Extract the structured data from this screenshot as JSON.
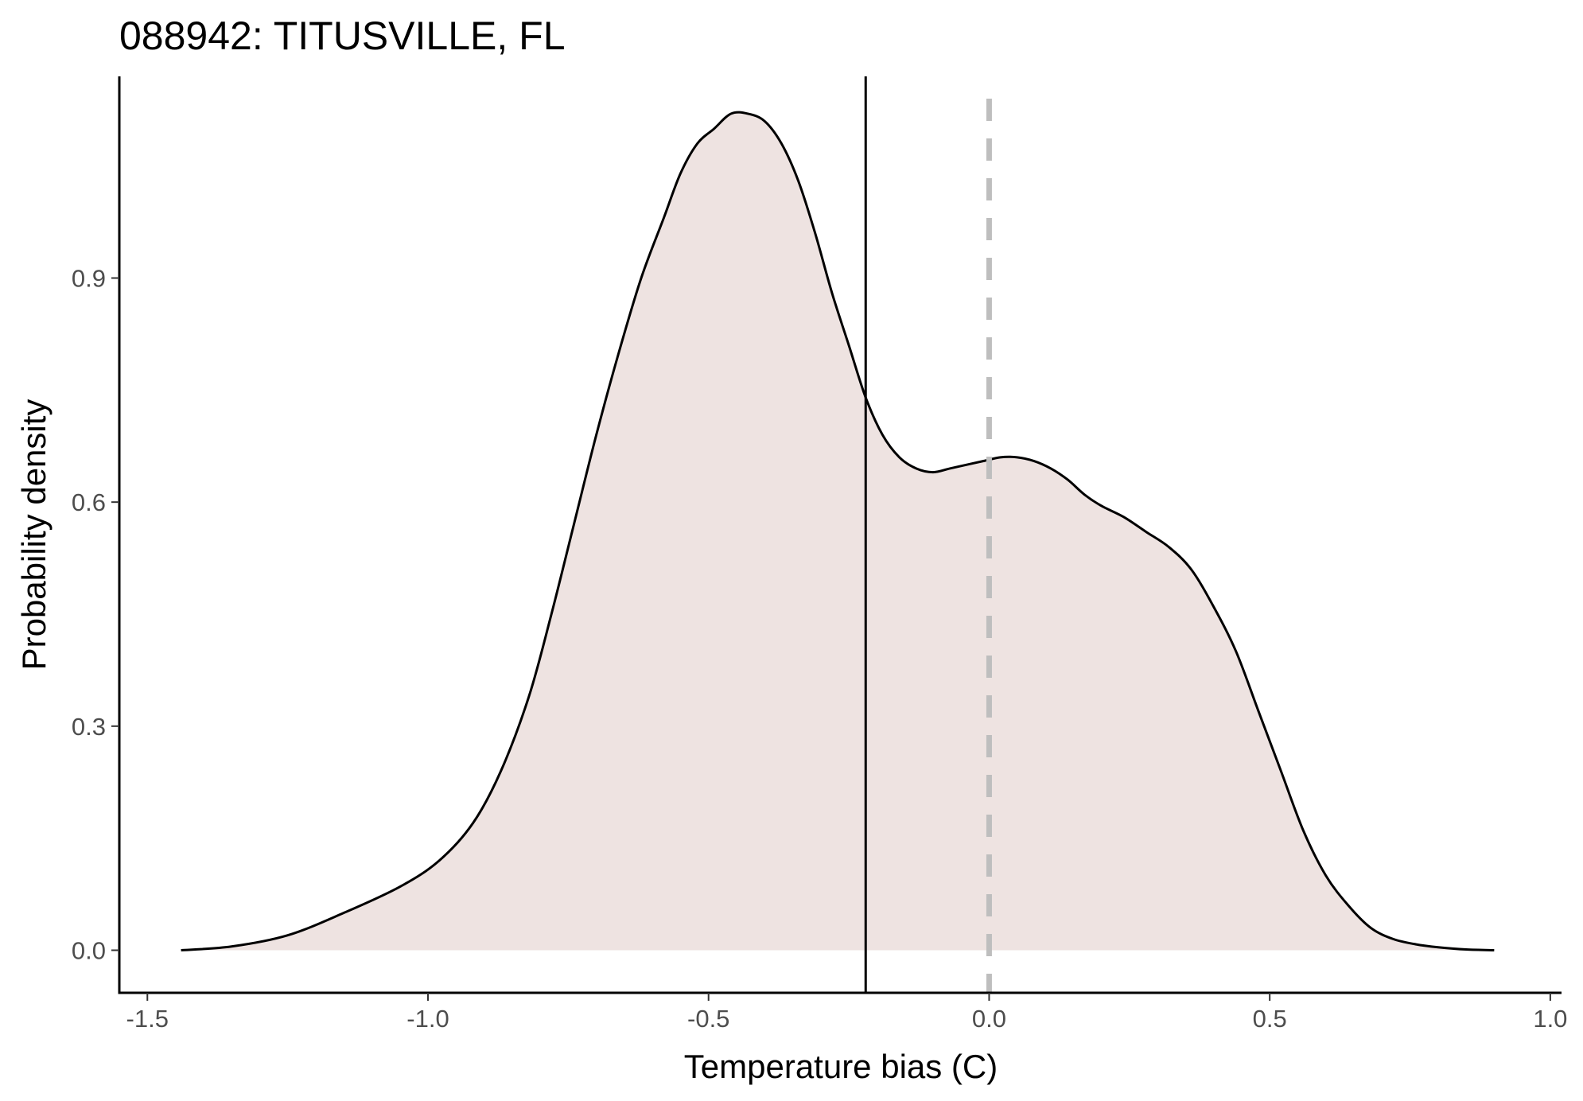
{
  "chart_data": {
    "type": "area",
    "title": "088942: TITUSVILLE, FL",
    "xlabel": "Temperature bias (C)",
    "ylabel": "Probability density",
    "xlim": [
      -1.55,
      1.02
    ],
    "ylim": [
      -0.057,
      1.17
    ],
    "x_ticks": [
      -1.5,
      -1.0,
      -0.5,
      0.0,
      0.5,
      1.0
    ],
    "x_tick_labels": [
      "-1.5",
      "-1.0",
      "-0.5",
      "0.0",
      "0.5",
      "1.0"
    ],
    "y_ticks": [
      0.0,
      0.3,
      0.6,
      0.9
    ],
    "y_tick_labels": [
      "0.0",
      "0.3",
      "0.6",
      "0.9"
    ],
    "grid": false,
    "fill_color": "#eee3e1",
    "line_color": "#000000",
    "reference_lines": [
      {
        "x": -0.22,
        "style": "solid",
        "color": "#000000"
      },
      {
        "x": 0.0,
        "style": "dashed",
        "color": "#bebebe"
      }
    ],
    "series": [
      {
        "x": [
          -1.44,
          -1.35,
          -1.25,
          -1.15,
          -1.05,
          -0.98,
          -0.92,
          -0.87,
          -0.82,
          -0.78,
          -0.74,
          -0.7,
          -0.66,
          -0.62,
          -0.58,
          -0.55,
          -0.52,
          -0.49,
          -0.46,
          -0.43,
          -0.4,
          -0.37,
          -0.34,
          -0.31,
          -0.28,
          -0.25,
          -0.22,
          -0.19,
          -0.16,
          -0.13,
          -0.1,
          -0.07,
          -0.04,
          -0.01,
          0.02,
          0.05,
          0.08,
          0.11,
          0.14,
          0.17,
          0.2,
          0.24,
          0.28,
          0.32,
          0.36,
          0.4,
          0.44,
          0.48,
          0.52,
          0.56,
          0.6,
          0.64,
          0.68,
          0.72,
          0.76,
          0.8,
          0.85,
          0.9
        ],
        "y": [
          0.0,
          0.005,
          0.02,
          0.05,
          0.085,
          0.12,
          0.17,
          0.24,
          0.34,
          0.45,
          0.57,
          0.69,
          0.8,
          0.9,
          0.98,
          1.04,
          1.08,
          1.1,
          1.12,
          1.12,
          1.11,
          1.08,
          1.03,
          0.96,
          0.88,
          0.81,
          0.74,
          0.69,
          0.66,
          0.645,
          0.64,
          0.645,
          0.65,
          0.655,
          0.66,
          0.66,
          0.655,
          0.645,
          0.63,
          0.61,
          0.595,
          0.58,
          0.56,
          0.54,
          0.51,
          0.46,
          0.4,
          0.32,
          0.24,
          0.16,
          0.1,
          0.06,
          0.03,
          0.015,
          0.008,
          0.004,
          0.001,
          0.0
        ]
      }
    ]
  }
}
